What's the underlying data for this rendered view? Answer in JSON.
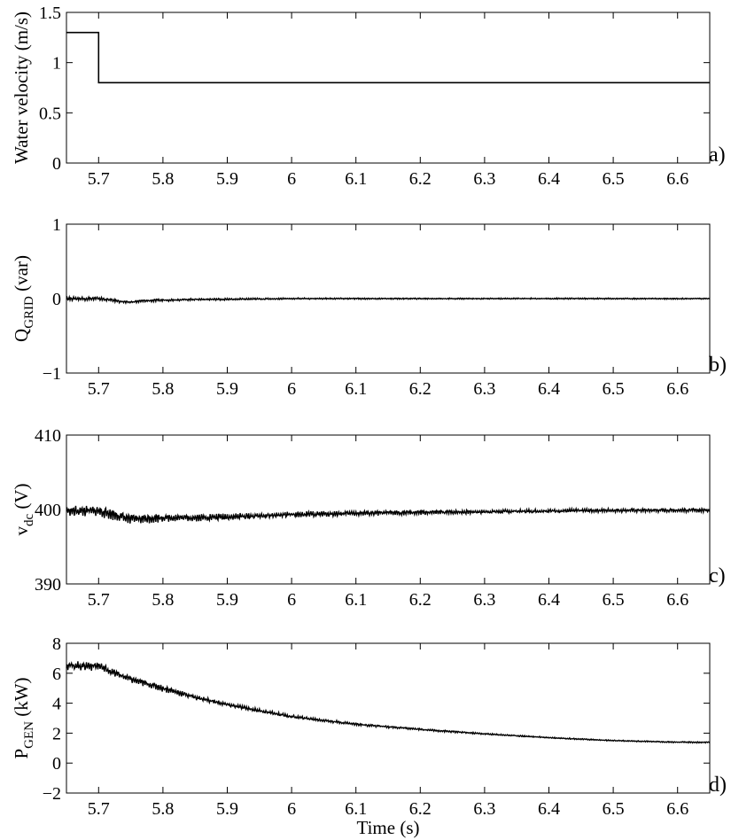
{
  "chart_data": [
    {
      "type": "line",
      "panel_label": "a)",
      "ylabel": "Water velocity (m/s)",
      "ylim": [
        0,
        1.5
      ],
      "yticks": [
        0,
        0.5,
        1,
        1.5
      ],
      "ytick_labels": [
        "0",
        "0.5",
        "1",
        "1.5"
      ],
      "xlim": [
        5.65,
        6.65
      ],
      "xticks": [
        5.7,
        5.8,
        5.9,
        6.0,
        6.1,
        6.2,
        6.3,
        6.4,
        6.5,
        6.6
      ],
      "xtick_labels": [
        "5.7",
        "5.8",
        "5.9",
        "6",
        "6.1",
        "6.2",
        "6.3",
        "6.4",
        "6.5",
        "6.6"
      ],
      "series": [
        {
          "x": [
            5.65,
            5.7,
            5.7,
            6.65
          ],
          "y": [
            1.3,
            1.3,
            0.8,
            0.8
          ],
          "ripple": 0
        }
      ]
    },
    {
      "type": "line",
      "panel_label": "b)",
      "ylabel": "Q",
      "ylabel_sub": "GRID",
      "ylabel_unit": " (var)",
      "ylim": [
        -1,
        1
      ],
      "yticks": [
        -1,
        0,
        1
      ],
      "ytick_labels": [
        "−1",
        "0",
        "1"
      ],
      "xlim": [
        5.65,
        6.65
      ],
      "xticks": [
        5.7,
        5.8,
        5.9,
        6.0,
        6.1,
        6.2,
        6.3,
        6.4,
        6.5,
        6.6
      ],
      "xtick_labels": [
        "5.7",
        "5.8",
        "5.9",
        "6",
        "6.1",
        "6.2",
        "6.3",
        "6.4",
        "6.5",
        "6.6"
      ],
      "series": [
        {
          "x": [
            5.65,
            5.7,
            5.72,
            5.745,
            5.77,
            5.8,
            5.85,
            5.9,
            6.0,
            6.2,
            6.4,
            6.65
          ],
          "y": [
            0.0,
            0.0,
            -0.02,
            -0.05,
            -0.03,
            -0.02,
            -0.01,
            -0.01,
            0.0,
            0.0,
            0.0,
            0.0
          ],
          "ripple": [
            0.03,
            0.03,
            0.025,
            0.02,
            0.02,
            0.02,
            0.015,
            0.015,
            0.012,
            0.01,
            0.01,
            0.01
          ]
        }
      ]
    },
    {
      "type": "line",
      "panel_label": "c)",
      "ylabel": "v",
      "ylabel_sub": "dc",
      "ylabel_unit": " (V)",
      "ylim": [
        390,
        410
      ],
      "yticks": [
        390,
        400,
        410
      ],
      "ytick_labels": [
        "390",
        "400",
        "410"
      ],
      "xlim": [
        5.65,
        6.65
      ],
      "xticks": [
        5.7,
        5.8,
        5.9,
        6.0,
        6.1,
        6.2,
        6.3,
        6.4,
        6.5,
        6.6
      ],
      "xtick_labels": [
        "5.7",
        "5.8",
        "5.9",
        "6",
        "6.1",
        "6.2",
        "6.3",
        "6.4",
        "6.5",
        "6.6"
      ],
      "series": [
        {
          "x": [
            5.65,
            5.7,
            5.72,
            5.75,
            5.8,
            5.85,
            5.9,
            6.0,
            6.1,
            6.2,
            6.3,
            6.4,
            6.5,
            6.65
          ],
          "y": [
            399.8,
            399.8,
            399.4,
            398.7,
            398.9,
            398.9,
            399.0,
            399.3,
            399.5,
            399.6,
            399.7,
            399.8,
            399.9,
            399.9
          ],
          "ripple": [
            0.8,
            0.8,
            0.8,
            0.8,
            0.6,
            0.55,
            0.5,
            0.45,
            0.4,
            0.35,
            0.3,
            0.3,
            0.3,
            0.3
          ]
        }
      ]
    },
    {
      "type": "line",
      "panel_label": "d)",
      "ylabel": "P",
      "ylabel_sub": "GEN",
      "ylabel_unit": " (kW)",
      "xlabel": "Time (s)",
      "ylim": [
        -2,
        8
      ],
      "yticks": [
        -2,
        0,
        2,
        4,
        6,
        8
      ],
      "ytick_labels": [
        "−2",
        "0",
        "2",
        "4",
        "6",
        "8"
      ],
      "xlim": [
        5.65,
        6.65
      ],
      "xticks": [
        5.7,
        5.8,
        5.9,
        6.0,
        6.1,
        6.2,
        6.3,
        6.4,
        6.5,
        6.6
      ],
      "xtick_labels": [
        "5.7",
        "5.8",
        "5.9",
        "6",
        "6.1",
        "6.2",
        "6.3",
        "6.4",
        "6.5",
        "6.6"
      ],
      "series": [
        {
          "x": [
            5.65,
            5.7,
            5.72,
            5.75,
            5.8,
            5.85,
            5.9,
            6.0,
            6.1,
            6.2,
            6.3,
            6.4,
            6.5,
            6.6,
            6.65
          ],
          "y": [
            6.5,
            6.5,
            6.1,
            5.6,
            5.0,
            4.4,
            3.9,
            3.1,
            2.6,
            2.25,
            1.95,
            1.7,
            1.5,
            1.4,
            1.38
          ],
          "ripple": [
            0.35,
            0.35,
            0.3,
            0.25,
            0.25,
            0.2,
            0.15,
            0.12,
            0.1,
            0.08,
            0.06,
            0.05,
            0.05,
            0.05,
            0.05
          ]
        }
      ]
    }
  ]
}
